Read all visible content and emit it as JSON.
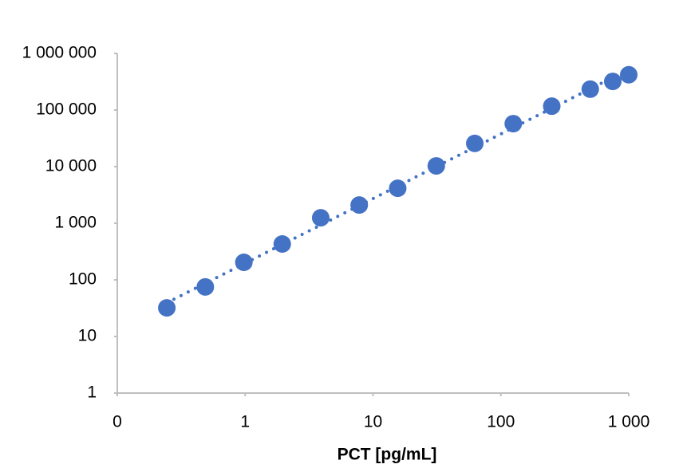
{
  "chart_data": {
    "type": "scatter",
    "x_label": "PCT [pg/mL]",
    "log_x": true,
    "log_y": true,
    "trendline": true,
    "color": "#4472c4",
    "series": [
      {
        "name": null,
        "color": "#4472c4",
        "x": [
          0.244,
          0.488,
          0.977,
          1.95,
          3.9,
          7.8,
          15.6,
          31.25,
          62.5,
          125,
          250,
          500,
          750,
          1000
        ],
        "values": [
          32,
          75,
          204,
          430,
          1250,
          2100,
          4150,
          10300,
          25700,
          57500,
          117000,
          234000,
          320000,
          420000
        ]
      }
    ],
    "xlim": [
      0.1,
      1000
    ],
    "xticks": [
      {
        "value": 0.1,
        "label": "0"
      },
      1,
      10,
      100,
      {
        "value": 1000,
        "label": "1 000"
      }
    ],
    "ylim": [
      1,
      1000000
    ],
    "yticks": [
      1,
      10,
      100,
      {
        "value": 1000,
        "label": "1 000"
      },
      {
        "value": 10000,
        "label": "10 000"
      },
      {
        "value": 100000,
        "label": "100 000"
      },
      {
        "value": 1000000,
        "label": "1 000 000"
      }
    ]
  }
}
